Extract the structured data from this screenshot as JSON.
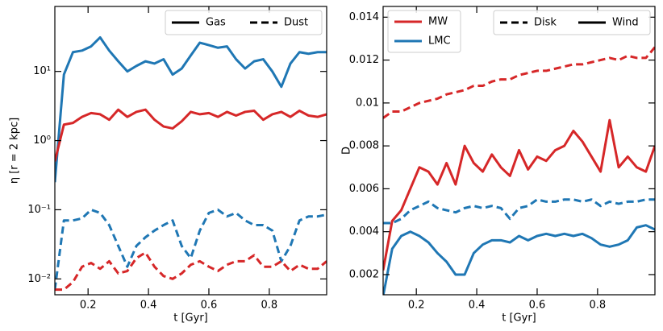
{
  "chart_data": [
    {
      "type": "line",
      "xlabel": "t [Gyr]",
      "ylabel": "η [r = 2 kpc]",
      "log_y": true,
      "xlim": [
        0.09,
        0.99
      ],
      "xticks": [
        0.2,
        0.4,
        0.6,
        0.8
      ],
      "ylim": [
        0.0059,
        87
      ],
      "yticks": [
        {
          "value": 0.01,
          "label": "10⁻²"
        },
        {
          "value": 0.1,
          "label": "10⁻¹"
        },
        {
          "value": 1,
          "label": "10⁰"
        },
        {
          "value": 10,
          "label": "10¹"
        }
      ],
      "legend": "upper right",
      "style_legend": [
        {
          "label": "Gas",
          "dashed": false
        },
        {
          "label": "Dust",
          "dashed": true
        }
      ],
      "x": [
        0.09,
        0.12,
        0.15,
        0.18,
        0.21,
        0.24,
        0.27,
        0.3,
        0.33,
        0.36,
        0.39,
        0.42,
        0.45,
        0.48,
        0.51,
        0.54,
        0.57,
        0.6,
        0.63,
        0.66,
        0.69,
        0.72,
        0.75,
        0.78,
        0.81,
        0.84,
        0.87,
        0.9,
        0.93,
        0.96,
        0.99
      ],
      "series": [
        {
          "color": "#1f77b4",
          "dashed": false,
          "values": [
            0.25,
            9,
            19,
            20,
            23,
            31,
            20,
            14,
            10,
            12,
            14,
            13,
            15,
            9,
            11,
            17,
            26,
            24,
            22,
            23,
            15,
            11,
            14,
            15,
            10,
            6,
            13,
            19,
            18,
            19,
            19
          ]
        },
        {
          "color": "#d62728",
          "dashed": false,
          "values": [
            0.5,
            1.7,
            1.8,
            2.2,
            2.5,
            2.4,
            2.0,
            2.8,
            2.2,
            2.6,
            2.8,
            2.0,
            1.6,
            1.5,
            1.9,
            2.6,
            2.4,
            2.5,
            2.2,
            2.6,
            2.3,
            2.6,
            2.7,
            2.0,
            2.4,
            2.6,
            2.2,
            2.7,
            2.3,
            2.2,
            2.4
          ]
        },
        {
          "color": "#1f77b4",
          "dashed": true,
          "values": [
            0.007,
            0.07,
            0.07,
            0.075,
            0.1,
            0.09,
            0.06,
            0.03,
            0.015,
            0.03,
            0.04,
            0.05,
            0.06,
            0.07,
            0.03,
            0.02,
            0.05,
            0.09,
            0.1,
            0.08,
            0.09,
            0.07,
            0.06,
            0.06,
            0.05,
            0.018,
            0.03,
            0.07,
            0.08,
            0.08,
            0.085
          ]
        },
        {
          "color": "#d62728",
          "dashed": true,
          "values": [
            0.007,
            0.007,
            0.009,
            0.015,
            0.017,
            0.014,
            0.018,
            0.012,
            0.013,
            0.02,
            0.024,
            0.015,
            0.011,
            0.01,
            0.012,
            0.016,
            0.018,
            0.015,
            0.013,
            0.016,
            0.018,
            0.018,
            0.022,
            0.015,
            0.015,
            0.018,
            0.013,
            0.016,
            0.014,
            0.014,
            0.018
          ]
        }
      ]
    },
    {
      "type": "line",
      "xlabel": "t [Gyr]",
      "ylabel": "D",
      "log_y": false,
      "xlim": [
        0.09,
        0.99
      ],
      "xticks": [
        0.2,
        0.4,
        0.6,
        0.8
      ],
      "ylim": [
        0.00106,
        0.0145
      ],
      "yticks": [
        0.002,
        0.004,
        0.006,
        0.008,
        0.01,
        0.012,
        0.014
      ],
      "yticks_format": [
        {
          "value": 0.002,
          "label": "0.002"
        }
      ],
      "color_legend_position": "upper left",
      "color_legend": [
        {
          "label": "MW",
          "color": "#d62728"
        },
        {
          "label": "LMC",
          "color": "#1f77b4"
        }
      ],
      "legend": "upper right",
      "style_legend": [
        {
          "label": "Disk",
          "dashed": true
        },
        {
          "label": "Wind",
          "dashed": false
        }
      ],
      "x": [
        0.09,
        0.12,
        0.15,
        0.18,
        0.21,
        0.24,
        0.27,
        0.3,
        0.33,
        0.36,
        0.39,
        0.42,
        0.45,
        0.48,
        0.51,
        0.54,
        0.57,
        0.6,
        0.63,
        0.66,
        0.69,
        0.72,
        0.75,
        0.78,
        0.81,
        0.84,
        0.87,
        0.9,
        0.93,
        0.96,
        0.99
      ],
      "series": [
        {
          "color": "#d62728",
          "dashed": false,
          "values": [
            0.0022,
            0.0045,
            0.005,
            0.006,
            0.007,
            0.0068,
            0.0062,
            0.0072,
            0.0062,
            0.008,
            0.0072,
            0.0068,
            0.0076,
            0.007,
            0.0066,
            0.0078,
            0.0069,
            0.0075,
            0.0073,
            0.0078,
            0.008,
            0.0087,
            0.0082,
            0.0075,
            0.0068,
            0.0092,
            0.007,
            0.0075,
            0.007,
            0.0068,
            0.008
          ]
        },
        {
          "color": "#d62728",
          "dashed": true,
          "values": [
            0.0093,
            0.0096,
            0.0096,
            0.0098,
            0.01,
            0.0101,
            0.0102,
            0.0104,
            0.0105,
            0.0106,
            0.0108,
            0.0108,
            0.011,
            0.0111,
            0.0111,
            0.0113,
            0.0114,
            0.0115,
            0.0115,
            0.0116,
            0.0117,
            0.0118,
            0.0118,
            0.0119,
            0.012,
            0.0121,
            0.012,
            0.0122,
            0.0121,
            0.0121,
            0.0126
          ]
        },
        {
          "color": "#1f77b4",
          "dashed": false,
          "values": [
            0.001,
            0.0032,
            0.0038,
            0.004,
            0.0038,
            0.0035,
            0.003,
            0.0026,
            0.002,
            0.002,
            0.003,
            0.0034,
            0.0036,
            0.0036,
            0.0035,
            0.0038,
            0.0036,
            0.0038,
            0.0039,
            0.0038,
            0.0039,
            0.0038,
            0.0039,
            0.0037,
            0.0034,
            0.0033,
            0.0034,
            0.0036,
            0.0042,
            0.0043,
            0.0041
          ]
        },
        {
          "color": "#1f77b4",
          "dashed": true,
          "values": [
            0.0044,
            0.0044,
            0.0046,
            0.005,
            0.0052,
            0.0054,
            0.0051,
            0.005,
            0.0049,
            0.0051,
            0.0052,
            0.0051,
            0.0052,
            0.0051,
            0.0046,
            0.0051,
            0.0052,
            0.0055,
            0.0054,
            0.0054,
            0.0055,
            0.0055,
            0.0054,
            0.0055,
            0.0052,
            0.0054,
            0.0053,
            0.0054,
            0.0054,
            0.0055,
            0.0055
          ]
        }
      ]
    }
  ]
}
